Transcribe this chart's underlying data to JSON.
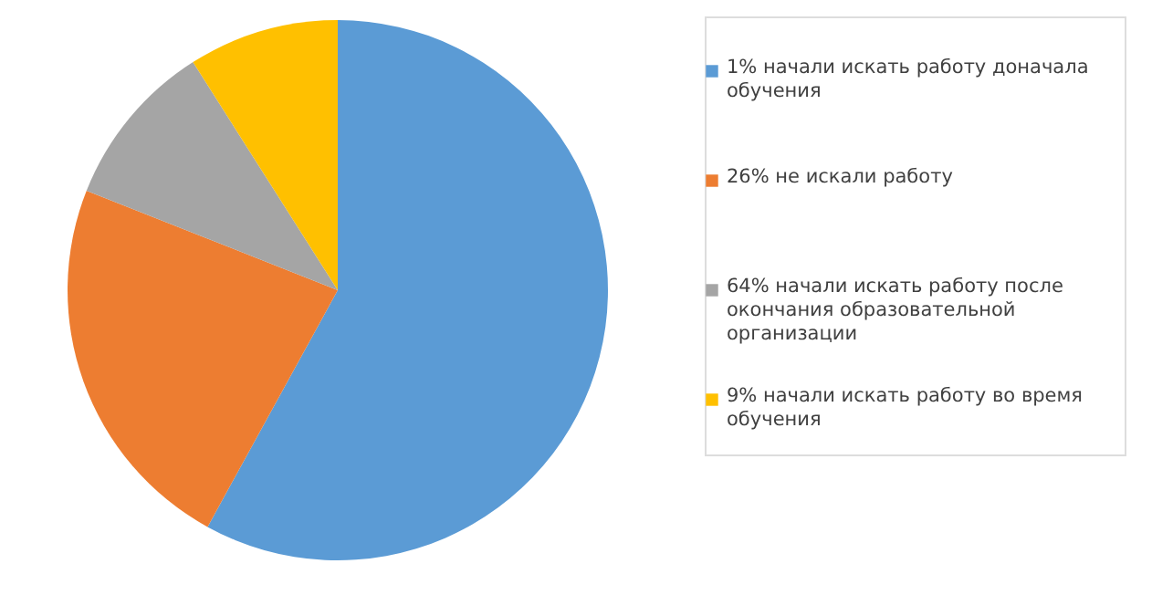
{
  "chart_data": {
    "type": "pie",
    "categories": [
      "1% начали искать работу доначала обучения",
      "26% не искали работу",
      "64% начали искать работу после окончания образовательной организации",
      "9% начали искать работу во время обучения"
    ],
    "values": [
      58,
      23,
      10,
      9
    ],
    "colors": [
      "#5b9bd5",
      "#ed7d31",
      "#a5a5a5",
      "#ffc000"
    ],
    "legend": "right"
  }
}
